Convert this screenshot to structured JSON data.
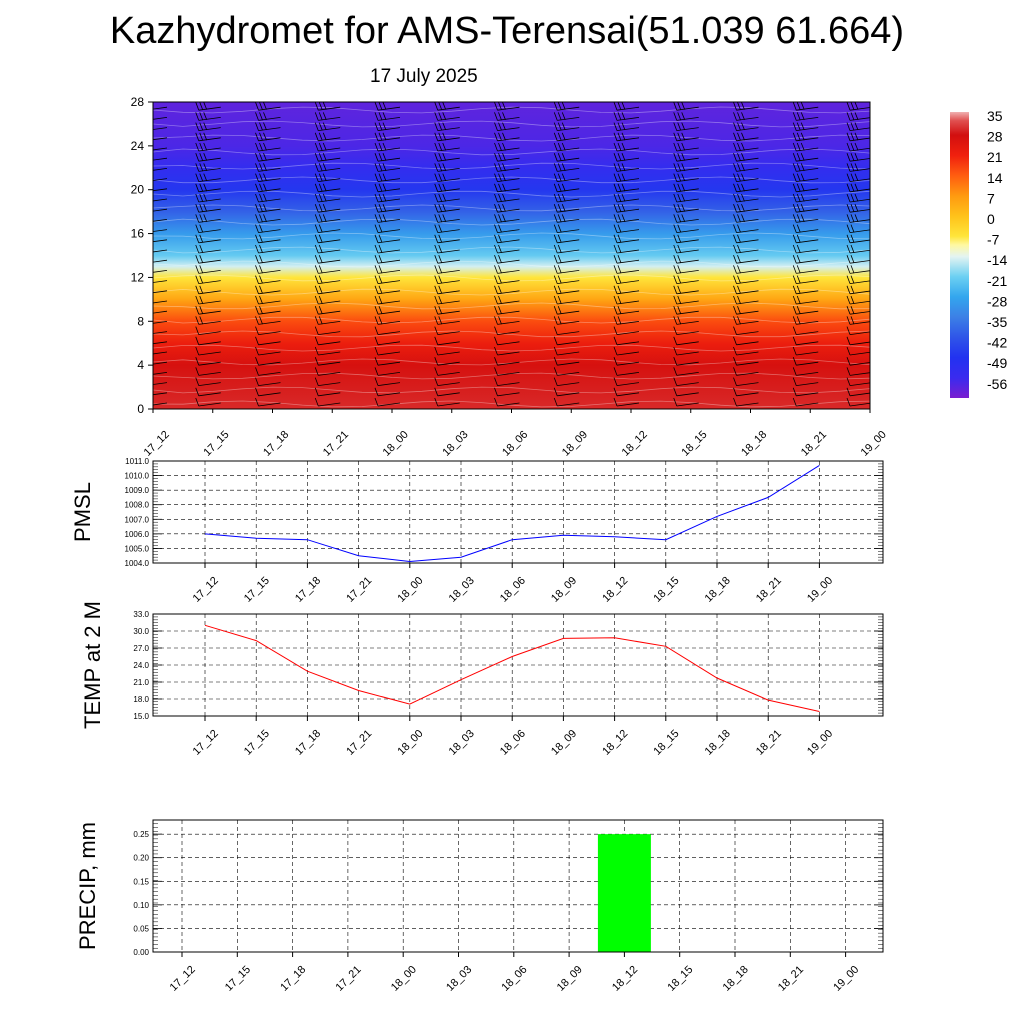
{
  "title": "Kazhydromet for AMS-Terensai(51.039 61.664)",
  "subtitle": "17 July 2025",
  "colors": {
    "pmsl_line": "#0000ff",
    "temp_line": "#ff0000",
    "precip_bar": "#00ff00",
    "gridline": "#000000"
  },
  "chart_data": [
    {
      "type": "heatmap",
      "title": "",
      "x": [
        "17_12",
        "17_15",
        "17_18",
        "17_21",
        "18_00",
        "18_03",
        "18_06",
        "18_09",
        "18_12",
        "18_15",
        "18_18",
        "18_21",
        "19_00"
      ],
      "yticks": [
        0,
        4,
        8,
        12,
        16,
        20,
        24,
        28
      ],
      "ylim": [
        0,
        28
      ],
      "colorbar": {
        "ticks": [
          35,
          28,
          21,
          14,
          7,
          0,
          -7,
          -14,
          -21,
          -28,
          -35,
          -42,
          -49,
          -56
        ],
        "range": [
          -63,
          36
        ]
      },
      "temperature_by_level": [
        {
          "y": 0,
          "value": 30
        },
        {
          "y": 4,
          "value": 27
        },
        {
          "y": 6,
          "value": 22
        },
        {
          "y": 8,
          "value": 16
        },
        {
          "y": 10,
          "value": 5
        },
        {
          "y": 12,
          "value": -7
        },
        {
          "y": 13,
          "value": -15
        },
        {
          "y": 14,
          "value": -22
        },
        {
          "y": 16,
          "value": -30
        },
        {
          "y": 18,
          "value": -40
        },
        {
          "y": 20,
          "value": -48
        },
        {
          "y": 22,
          "value": -54
        },
        {
          "y": 24,
          "value": -58
        },
        {
          "y": 28,
          "value": -60
        }
      ],
      "overlay": "wind barbs"
    },
    {
      "type": "line",
      "ylabel": "PMSL",
      "x": [
        "17_12",
        "17_15",
        "17_18",
        "17_21",
        "18_00",
        "18_03",
        "18_06",
        "18_09",
        "18_12",
        "18_15",
        "18_18",
        "18_21",
        "19_00"
      ],
      "series": [
        {
          "values": [
            1006.0,
            1005.7,
            1005.6,
            1004.5,
            1004.1,
            1004.4,
            1005.6,
            1005.9,
            1005.8,
            1005.6,
            1007.2,
            1008.5,
            1010.7
          ]
        }
      ],
      "yticks": [
        "1004.0",
        "1005.0",
        "1006.0",
        "1007.0",
        "1008.0",
        "1009.0",
        "1010.0",
        "1011.0"
      ],
      "ylim": [
        1004,
        1011
      ],
      "grid": true
    },
    {
      "type": "line",
      "ylabel": "TEMP at 2 M",
      "x": [
        "17_12",
        "17_15",
        "17_18",
        "17_21",
        "18_00",
        "18_03",
        "18_06",
        "18_09",
        "18_12",
        "18_15",
        "18_18",
        "18_21",
        "19_00"
      ],
      "series": [
        {
          "values": [
            31.0,
            28.3,
            22.9,
            19.5,
            17.1,
            21.4,
            25.5,
            28.7,
            28.8,
            27.3,
            21.7,
            17.8,
            15.8
          ]
        }
      ],
      "yticks": [
        "15.0",
        "18.0",
        "21.0",
        "24.0",
        "27.0",
        "30.0",
        "33.0"
      ],
      "ylim": [
        15,
        33
      ],
      "grid": true
    },
    {
      "type": "bar",
      "ylabel": "PRECIP, mm",
      "categories": [
        "17_12",
        "17_15",
        "17_18",
        "17_21",
        "18_00",
        "18_03",
        "18_06",
        "18_09",
        "18_12",
        "18_15",
        "18_18",
        "18_21",
        "19_00"
      ],
      "values": [
        0,
        0,
        0,
        0,
        0,
        0,
        0,
        0,
        0.25,
        0,
        0,
        0,
        0
      ],
      "yticks": [
        "0.00",
        "0.05",
        "0.10",
        "0.15",
        "0.20",
        "0.25"
      ],
      "ylim": [
        0,
        0.28
      ],
      "grid": true
    }
  ]
}
